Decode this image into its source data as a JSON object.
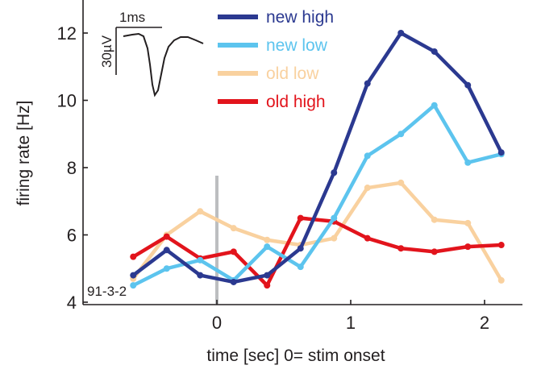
{
  "chart_data": {
    "type": "line",
    "xlabel": "time [sec] 0= stim onset",
    "ylabel": "firing rate [Hz]",
    "xlim": [
      -1.0,
      2.3
    ],
    "ylim": [
      4,
      13
    ],
    "xticks": [
      0,
      1,
      2
    ],
    "yticks": [
      4,
      6,
      8,
      10,
      12
    ],
    "x": [
      -0.625,
      -0.375,
      -0.125,
      0.125,
      0.375,
      0.625,
      0.875,
      1.125,
      1.375,
      1.625,
      1.875,
      2.125
    ],
    "series": [
      {
        "name": "old low",
        "color": "#f9d19f",
        "values": [
          4.7,
          6.0,
          6.7,
          6.2,
          5.85,
          5.7,
          5.9,
          7.4,
          7.55,
          6.45,
          6.35,
          4.65
        ]
      },
      {
        "name": "old high",
        "color": "#e2141c",
        "values": [
          5.35,
          5.95,
          5.3,
          5.5,
          4.5,
          6.5,
          6.4,
          5.9,
          5.6,
          5.5,
          5.65,
          5.7
        ]
      },
      {
        "name": "new low",
        "color": "#5cc4ee",
        "values": [
          4.5,
          5.0,
          5.25,
          4.65,
          5.65,
          5.05,
          6.5,
          8.35,
          9.0,
          9.85,
          8.15,
          8.4
        ]
      },
      {
        "name": "new high",
        "color": "#2b3990",
        "values": [
          4.8,
          5.55,
          4.8,
          4.6,
          4.8,
          5.6,
          7.85,
          10.5,
          12.0,
          11.45,
          10.45,
          8.45
        ]
      }
    ],
    "legend": {
      "position": "top-center",
      "order": [
        "new high",
        "new low",
        "old low",
        "old high"
      ]
    },
    "stimulus_marker": {
      "x": 0,
      "color": "#bcbec0"
    },
    "grid": false
  },
  "annotations": {
    "unit_id": "91-3-2",
    "inset_time_scale": "1ms",
    "inset_voltage_scale": "30µV"
  }
}
